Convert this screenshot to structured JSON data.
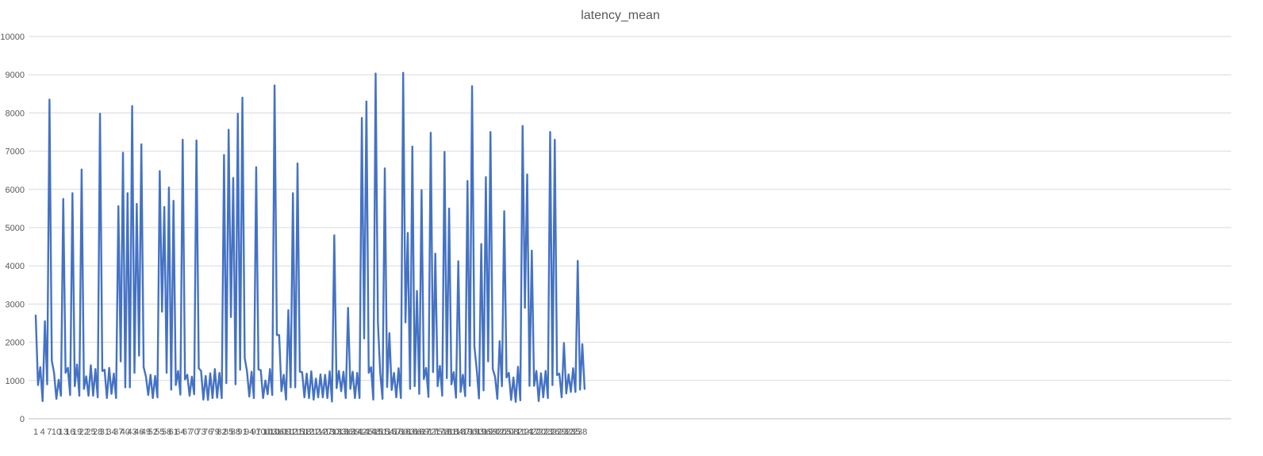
{
  "chart_data": {
    "type": "line",
    "title": "latency_mean",
    "xlabel": "",
    "ylabel": "",
    "ylim": [
      0,
      10000
    ],
    "yticks": [
      0,
      1000,
      2000,
      3000,
      4000,
      5000,
      6000,
      7000,
      8000,
      9000,
      10000
    ],
    "x": [
      1,
      2,
      3,
      4,
      5,
      6,
      7,
      8,
      9,
      10,
      11,
      12,
      13,
      14,
      15,
      16,
      17,
      18,
      19,
      20,
      21,
      22,
      23,
      24,
      25,
      26,
      27,
      28,
      29,
      30,
      31,
      32,
      33,
      34,
      35,
      36,
      37,
      38,
      39,
      40,
      41,
      42,
      43,
      44,
      45,
      46,
      47,
      48,
      49,
      50,
      51,
      52,
      53,
      54,
      55,
      56,
      57,
      58,
      59,
      60,
      61,
      62,
      63,
      64,
      65,
      66,
      67,
      68,
      69,
      70,
      71,
      72,
      73,
      74,
      75,
      76,
      77,
      78,
      79,
      80,
      81,
      82,
      83,
      84,
      85,
      86,
      87,
      88,
      89,
      90,
      91,
      92,
      93,
      94,
      95,
      96,
      97,
      98,
      99,
      100,
      101,
      102,
      103,
      104,
      105,
      106,
      107,
      108,
      109,
      110,
      111,
      112,
      113,
      114,
      115,
      116,
      117,
      118,
      119,
      120,
      121,
      122,
      123,
      124,
      125,
      126,
      127,
      128,
      129,
      130,
      131,
      132,
      133,
      134,
      135,
      136,
      137,
      138,
      139,
      140,
      141,
      142,
      143,
      144,
      145,
      146,
      147,
      148,
      149,
      150,
      151,
      152,
      153,
      154,
      155,
      156,
      157,
      158,
      159,
      160,
      161,
      162,
      163,
      164,
      165,
      166,
      167,
      168,
      169,
      170,
      171,
      172,
      173,
      174,
      175,
      176,
      177,
      178,
      179,
      180,
      181,
      182,
      183,
      184,
      185,
      186,
      187,
      188,
      189,
      190,
      191,
      192,
      193,
      194,
      195,
      196,
      197,
      198,
      199,
      200,
      201,
      202,
      203,
      204,
      205,
      206,
      207,
      208,
      209,
      210,
      211,
      212,
      213,
      214,
      215,
      216,
      217,
      218,
      219,
      220,
      221,
      222,
      223,
      224,
      225,
      226,
      227,
      228,
      229,
      230,
      231,
      232,
      233,
      234,
      235,
      236,
      237,
      238,
      239,
      240
    ],
    "xtick_labels": [
      "1",
      "4",
      "7",
      "10",
      "13",
      "16",
      "19",
      "22",
      "25",
      "28",
      "31",
      "34",
      "37",
      "40",
      "43",
      "46",
      "49",
      "52",
      "55",
      "58",
      "61",
      "64",
      "67",
      "70",
      "73",
      "76",
      "79",
      "82",
      "85",
      "88",
      "91",
      "94",
      "97",
      "100",
      "103",
      "106",
      "109",
      "112",
      "115",
      "118",
      "121",
      "124",
      "127",
      "130",
      "133",
      "136",
      "139",
      "142",
      "145",
      "148",
      "151",
      "154",
      "157",
      "160",
      "163",
      "166",
      "169",
      "172",
      "175",
      "178",
      "181",
      "184",
      "187",
      "190",
      "193",
      "196",
      "199",
      "202",
      "205",
      "208",
      "211",
      "214",
      "217",
      "220",
      "223",
      "226",
      "229",
      "232",
      "235",
      "238"
    ],
    "series": [
      {
        "name": "",
        "color": "#4472c4",
        "values": [
          2700,
          880,
          1350,
          460,
          2550,
          900,
          8350,
          1520,
          1200,
          520,
          1020,
          600,
          5750,
          1200,
          1330,
          620,
          5900,
          850,
          1420,
          600,
          6520,
          780,
          1110,
          600,
          1400,
          600,
          1300,
          560,
          7980,
          1250,
          1280,
          540,
          1330,
          650,
          1180,
          540,
          5560,
          1500,
          6960,
          820,
          5900,
          820,
          8180,
          1200,
          5620,
          1650,
          7180,
          1350,
          1100,
          620,
          1150,
          540,
          1120,
          560,
          6480,
          2800,
          5540,
          1200,
          6050,
          760,
          5700,
          880,
          1250,
          630,
          7300,
          1030,
          1150,
          600,
          1100,
          640,
          7280,
          1320,
          1250,
          500,
          1120,
          490,
          1190,
          540,
          1300,
          550,
          1200,
          540,
          6900,
          930,
          7560,
          2660,
          6300,
          900,
          7980,
          1280,
          8400,
          1590,
          1240,
          580,
          1230,
          540,
          6580,
          1290,
          1270,
          540,
          1000,
          640,
          1300,
          620,
          8720,
          2190,
          2190,
          720,
          1150,
          500,
          2840,
          820,
          5900,
          820,
          6680,
          1230,
          1220,
          560,
          1180,
          540,
          1240,
          500,
          1050,
          560,
          1160,
          560,
          1150,
          540,
          1240,
          450,
          4800,
          800,
          1250,
          720,
          1230,
          540,
          2900,
          780,
          1230,
          540,
          1200,
          540,
          7870,
          2100,
          8300,
          1200,
          1350,
          500,
          9030,
          2520,
          1200,
          520,
          6550,
          830,
          2240,
          750,
          1200,
          560,
          1320,
          540,
          9050,
          2520,
          4860,
          780,
          7120,
          850,
          3340,
          650,
          5980,
          1040,
          1330,
          570,
          7480,
          1220,
          4320,
          850,
          1380,
          600,
          6980,
          1060,
          5500,
          900,
          1220,
          550,
          4120,
          700,
          1150,
          590,
          6220,
          860,
          8700,
          1900,
          1300,
          530,
          4570,
          740,
          6320,
          1500,
          7500,
          1300,
          1100,
          520,
          2030,
          850,
          5430,
          1080,
          1200,
          490,
          1080,
          440,
          1360,
          480,
          7660,
          2900,
          6390,
          860,
          4400,
          860,
          1250,
          460,
          1190,
          560,
          1250,
          540,
          7500,
          880,
          7300,
          1140,
          1180,
          560,
          1980,
          660,
          1160,
          700,
          1320,
          700,
          4130,
          760,
          1950,
          780
        ]
      }
    ]
  }
}
